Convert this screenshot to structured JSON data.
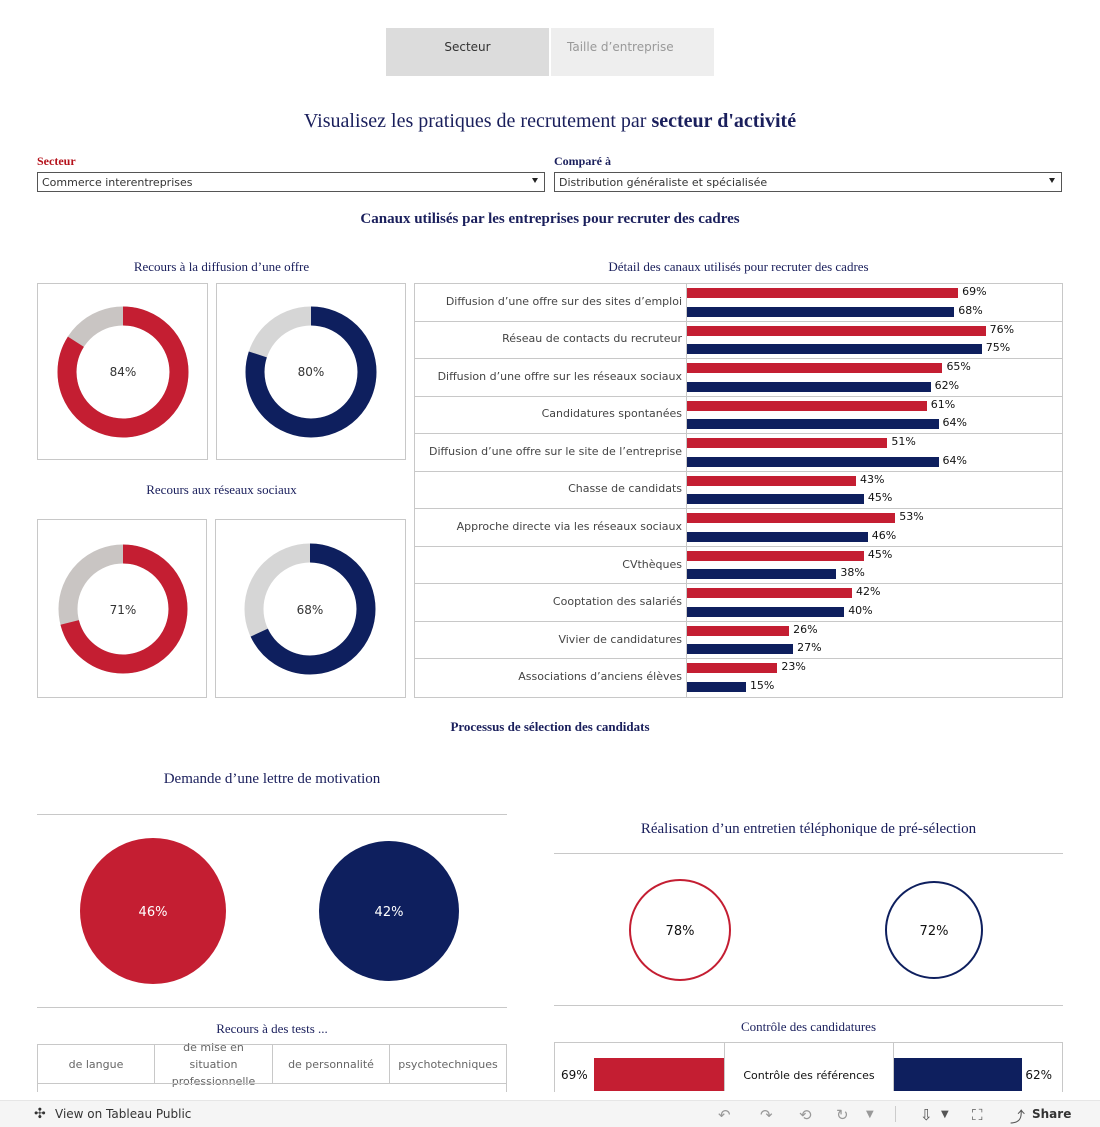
{
  "tabs": [
    {
      "label": "Secteur",
      "active": true
    },
    {
      "label": "Taille d’entreprise",
      "active": false
    }
  ],
  "main_title": {
    "prefix": "Visualisez les pratiques de recrutement par",
    "emphasis": "secteur d'activité"
  },
  "filters": {
    "secteur": {
      "label": "Secteur",
      "value": "Commerce interentreprises",
      "color": "#b5121b"
    },
    "compare": {
      "label": "Comparé à",
      "value": "Distribution généraliste et spécialisée",
      "color": "#1a1f5c"
    }
  },
  "colors": {
    "red": "#c41e32",
    "navy": "#0e1f5e",
    "grey_red": "#c9c5c3",
    "grey_navy": "#d6d6d6"
  },
  "section1_title": "Canaux utilisés par les entreprises pour recruter des cadres",
  "diffusion": {
    "title": "Recours à la diffusion d’une offre",
    "sector_label": "84%",
    "sector_value": 84,
    "compare_label": "80%",
    "compare_value": 80
  },
  "reseaux": {
    "title": "Recours aux réseaux sociaux",
    "sector_label": "71%",
    "sector_value": 71,
    "compare_label": "68%",
    "compare_value": 68
  },
  "chart_data": {
    "type": "bar",
    "title": "Détail des canaux utilisés pour recruter des cadres",
    "categories": [
      "Diffusion d’une offre sur des sites d’emploi",
      "Réseau de contacts du recruteur",
      "Diffusion d’une offre sur les réseaux sociaux",
      "Candidatures spontanées",
      "Diffusion d’une offre sur le site de l’entreprise",
      "Chasse de candidats",
      "Approche directe via les réseaux sociaux",
      "CVthèques",
      "Cooptation des salariés",
      "Vivier de candidatures",
      "Associations d’anciens élèves"
    ],
    "series": [
      {
        "name": "Commerce interentreprises",
        "values": [
          69,
          76,
          65,
          61,
          51,
          43,
          53,
          45,
          42,
          26,
          23
        ],
        "labels": [
          "69%",
          "76%",
          "65%",
          "61%",
          "51%",
          "43%",
          "53%",
          "45%",
          "42%",
          "26%",
          "23%"
        ]
      },
      {
        "name": "Distribution généraliste et spécialisée",
        "values": [
          68,
          75,
          62,
          64,
          64,
          45,
          46,
          38,
          40,
          27,
          15
        ],
        "labels": [
          "68%",
          "75%",
          "62%",
          "64%",
          "64%",
          "45%",
          "46%",
          "38%",
          "40%",
          "27%",
          "15%"
        ]
      }
    ],
    "xlim": [
      0,
      100
    ]
  },
  "section2_title": "Processus de sélection des candidats",
  "lettre": {
    "title": "Demande d’une lettre de motivation",
    "sector_label": "46%",
    "sector_value": 46,
    "compare_label": "42%",
    "compare_value": 42
  },
  "entretien": {
    "title": "Réalisation d’un entretien téléphonique  de pré-sélection",
    "sector_label": "78%",
    "sector_value": 78,
    "compare_label": "72%",
    "compare_value": 72
  },
  "tests": {
    "title": "Recours à des tests ...",
    "columns": [
      "de langue",
      "de mise en situation professionnelle",
      "de personnalité",
      "psychotechniques"
    ]
  },
  "controle": {
    "title": "Contrôle des candidatures",
    "row_label": "Contrôle des références",
    "sector_label": "69%",
    "sector_value": 69,
    "compare_label": "62%",
    "compare_value": 62
  },
  "footer": {
    "view_label": "View on Tableau Public",
    "share_label": "Share"
  }
}
